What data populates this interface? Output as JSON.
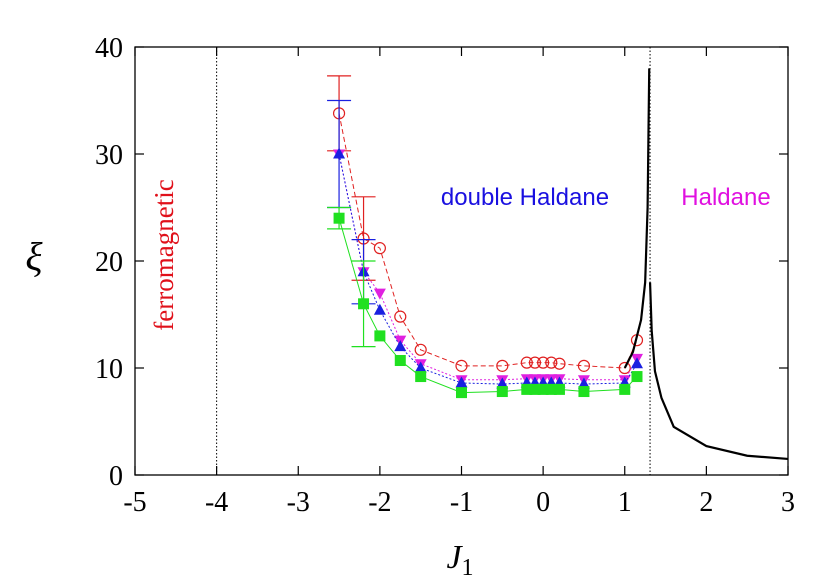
{
  "chart_data": {
    "type": "scatter",
    "xlabel_main": "J",
    "xlabel_sub": "1",
    "ylabel": "ξ",
    "xlim": [
      -5,
      3
    ],
    "ylim": [
      0,
      40
    ],
    "x_ticks": [
      "-5",
      "-4",
      "-3",
      "-2",
      "-1",
      "0",
      "1",
      "2",
      "3"
    ],
    "y_ticks": [
      "0",
      "10",
      "20",
      "30",
      "40"
    ],
    "grid": false,
    "vertical_lines": [
      {
        "x": -4,
        "style": "dotted",
        "color": "#000000"
      },
      {
        "x": 1.31,
        "style": "dotted",
        "color": "#000000"
      }
    ],
    "annotations": [
      {
        "text": "ferromagnetic",
        "color": "#e0101a"
      },
      {
        "text": "double Haldane",
        "color": "#1a10e0"
      },
      {
        "text": "Haldane",
        "color": "#e010e0"
      }
    ],
    "series": [
      {
        "marker": "open-circle",
        "color": "#e02020",
        "line": "dashed",
        "x": [
          -2.5,
          -2.2,
          -2.0,
          -1.75,
          -1.5,
          -1.0,
          -0.5,
          -0.2,
          -0.1,
          0.0,
          0.1,
          0.2,
          0.5,
          1.0,
          1.15
        ],
        "y": [
          33.8,
          22.1,
          21.2,
          14.8,
          11.7,
          10.2,
          10.2,
          10.5,
          10.5,
          10.5,
          10.5,
          10.4,
          10.2,
          10.0,
          12.6
        ],
        "yerr": [
          3.5,
          3.9,
          0,
          0,
          0,
          0,
          0,
          0,
          0,
          0,
          0,
          0,
          0,
          0,
          0
        ]
      },
      {
        "marker": "filled-down-triangle",
        "color": "#e020e0",
        "line": "dotted",
        "x": [
          -2.5,
          -2.2,
          -2.0,
          -1.75,
          -1.5,
          -1.0,
          -0.5,
          -0.2,
          -0.1,
          0.0,
          0.1,
          0.2,
          0.5,
          1.0,
          1.15
        ],
        "y": [
          30.0,
          19.0,
          17.0,
          12.6,
          10.4,
          8.9,
          8.9,
          9.0,
          9.0,
          9.0,
          9.0,
          9.0,
          8.9,
          8.9,
          10.9
        ],
        "yerr": [
          0,
          0,
          0,
          0,
          0,
          0,
          0,
          0,
          0,
          0,
          0,
          0,
          0,
          0,
          0
        ]
      },
      {
        "marker": "filled-up-triangle",
        "color": "#1a20e0",
        "line": "dotted",
        "x": [
          -2.5,
          -2.2,
          -2.0,
          -1.75,
          -1.5,
          -1.0,
          -0.5,
          -0.2,
          -0.1,
          0.0,
          0.1,
          0.2,
          0.5,
          1.0,
          1.15
        ],
        "y": [
          30.0,
          19.0,
          15.4,
          12.0,
          10.0,
          8.6,
          8.5,
          8.6,
          8.6,
          8.6,
          8.6,
          8.6,
          8.5,
          8.6,
          10.4
        ],
        "yerr": [
          5.0,
          3.0,
          0,
          0,
          0,
          0,
          0,
          0,
          0,
          0,
          0,
          0,
          0,
          0,
          0
        ]
      },
      {
        "marker": "filled-square",
        "color": "#20e020",
        "line": "solid",
        "x": [
          -2.5,
          -2.2,
          -2.0,
          -1.75,
          -1.5,
          -1.0,
          -0.5,
          -0.2,
          -0.1,
          0.0,
          0.1,
          0.2,
          0.5,
          1.0,
          1.15
        ],
        "y": [
          24.0,
          16.0,
          13.0,
          10.7,
          9.2,
          7.7,
          7.8,
          8.0,
          8.0,
          8.0,
          8.0,
          8.0,
          7.8,
          8.0,
          9.2
        ],
        "yerr": [
          1.0,
          4.0,
          0,
          0,
          0,
          0,
          0,
          0,
          0,
          0,
          0,
          0,
          0,
          0,
          0
        ]
      },
      {
        "marker": "none",
        "color": "#000000",
        "line": "solid",
        "x": [
          1.0,
          1.1,
          1.2,
          1.25,
          1.28,
          1.3
        ],
        "y": [
          10.0,
          11.5,
          14.5,
          18.0,
          25.0,
          38.0
        ]
      },
      {
        "marker": "none",
        "color": "#000000",
        "line": "solid",
        "x": [
          1.31,
          1.33,
          1.37,
          1.45,
          1.6,
          2.0,
          2.5,
          3.0
        ],
        "y": [
          18.0,
          13.5,
          9.7,
          7.2,
          4.5,
          2.7,
          1.8,
          1.5
        ]
      }
    ]
  }
}
